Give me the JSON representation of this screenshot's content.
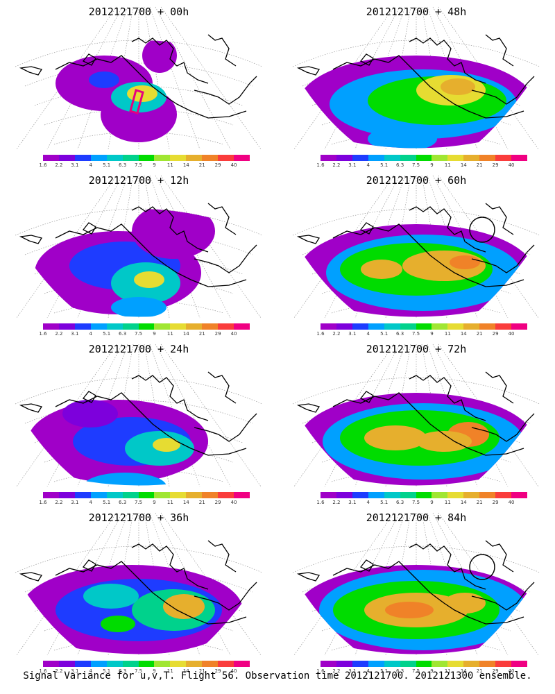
{
  "caption": "Signal Variance for u,v,T. Flight 56. Observation time 2012121700. 2012121300 ensemble.",
  "colorbar": {
    "labels": [
      "1.6",
      "2.2",
      "3.1",
      "4",
      "5.1",
      "6.3",
      "7.5",
      "9",
      "11",
      "14",
      "21",
      "29",
      "40"
    ],
    "colors": [
      "#a000c8",
      "#7d00dc",
      "#1e3cff",
      "#00a0ff",
      "#00c8c8",
      "#00d28c",
      "#00dc00",
      "#a0e632",
      "#e6dc32",
      "#e6af2d",
      "#f08228",
      "#fa3c3c",
      "#f00082"
    ]
  },
  "panels": [
    {
      "title": "2012121700 + 00h",
      "column": "left",
      "row": 0,
      "stage": 0,
      "circle": false,
      "track": true
    },
    {
      "title": "2012121700 + 12h",
      "column": "left",
      "row": 1,
      "stage": 1,
      "circle": false,
      "track": false
    },
    {
      "title": "2012121700 + 24h",
      "column": "left",
      "row": 2,
      "stage": 2,
      "circle": false,
      "track": false
    },
    {
      "title": "2012121700 + 36h",
      "column": "left",
      "row": 3,
      "stage": 3,
      "circle": false,
      "track": false
    },
    {
      "title": "2012121700 + 48h",
      "column": "right",
      "row": 0,
      "stage": 4,
      "circle": false,
      "track": false
    },
    {
      "title": "2012121700 + 60h",
      "column": "right",
      "row": 1,
      "stage": 5,
      "circle": true,
      "track": false
    },
    {
      "title": "2012121700 + 72h",
      "column": "right",
      "row": 2,
      "stage": 6,
      "circle": false,
      "track": false
    },
    {
      "title": "2012121700 + 84h",
      "column": "right",
      "row": 3,
      "stage": 7,
      "circle": true,
      "track": false
    }
  ]
}
